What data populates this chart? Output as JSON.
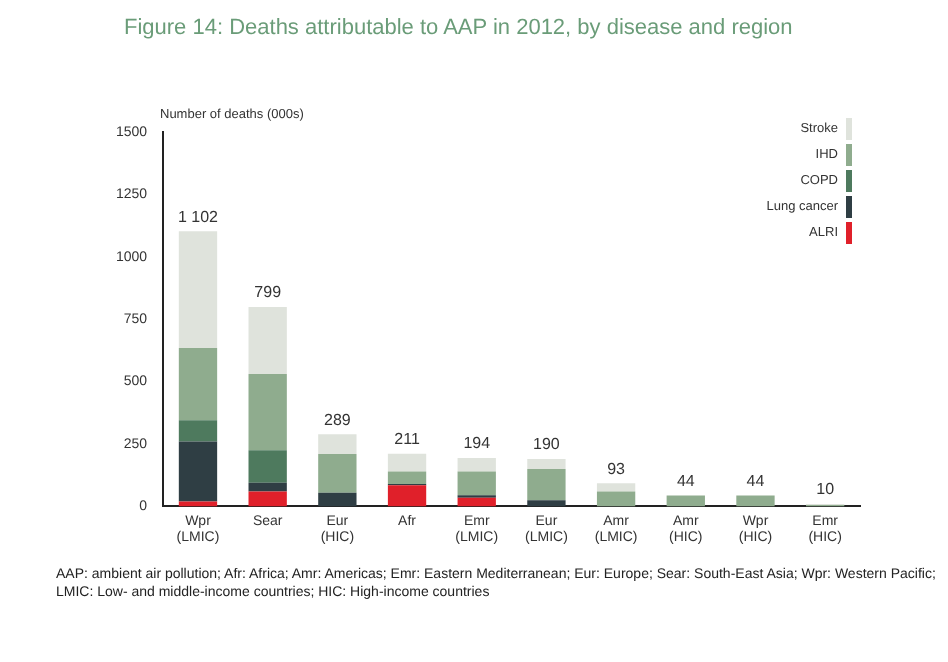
{
  "chart_data": {
    "type": "bar",
    "title": "Figure 14: Deaths attributable to AAP in 2012, by disease and region",
    "ylabel": "Number of deaths (000s)",
    "stacked": true,
    "categories": [
      "Wpr (LMIC)",
      "Sear",
      "Eur (HIC)",
      "Afr",
      "Emr (LMIC)",
      "Eur (LMIC)",
      "Amr (LMIC)",
      "Amr (HIC)",
      "Wpr (HIC)",
      "Emr (HIC)"
    ],
    "series": [
      {
        "name": "ALRI",
        "color": "#e0202a",
        "values": [
          20,
          60,
          0,
          85,
          35,
          0,
          0,
          0,
          0,
          0
        ]
      },
      {
        "name": "Lung cancer",
        "color": "#2f3e44",
        "values": [
          240,
          35,
          55,
          5,
          10,
          25,
          null,
          null,
          null,
          0
        ]
      },
      {
        "name": "COPD",
        "color": "#4e7a5e",
        "values": [
          85,
          130,
          0,
          0,
          0,
          0,
          0,
          0,
          0,
          0
        ]
      },
      {
        "name": "IHD",
        "color": "#8fac8e",
        "values": [
          290,
          305,
          155,
          50,
          95,
          125,
          60,
          44,
          44,
          6
        ]
      },
      {
        "name": "Stroke",
        "color": "#dfe3dc",
        "values": [
          467,
          269,
          79,
          71,
          54,
          40,
          33,
          null,
          null,
          4
        ]
      }
    ],
    "totals": [
      "1 102",
      "799",
      "289",
      "211",
      "194",
      "190",
      "93",
      "44",
      "44",
      "10"
    ],
    "ylim": [
      0,
      1500
    ],
    "yticks": [
      0,
      250,
      500,
      750,
      1000,
      1250,
      1500
    ],
    "grid": false,
    "legend": "top right",
    "annotations": [
      "AAP: ambient air pollution; Afr: Africa; Amr: Americas; Emr: Eastern Mediterranean; Eur: Europe; Sear: South-East Asia; Wpr: Western Pacific; LMIC: Low- and middle-income countries; HIC: High-income countries"
    ]
  }
}
